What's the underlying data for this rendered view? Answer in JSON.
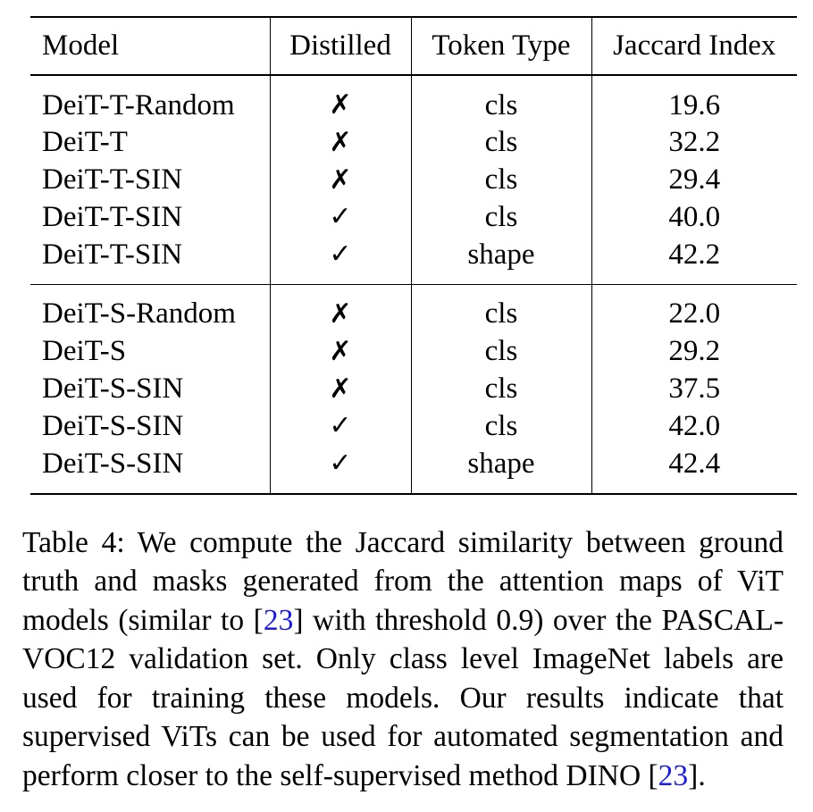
{
  "table": {
    "headers": [
      "Model",
      "Distilled",
      "Token Type",
      "Jaccard Index"
    ],
    "groups": [
      {
        "rows": [
          {
            "model": "DeiT-T-Random",
            "distilled": "✗",
            "token_type": "cls",
            "jaccard": "19.6"
          },
          {
            "model": "DeiT-T",
            "distilled": "✗",
            "token_type": "cls",
            "jaccard": "32.2"
          },
          {
            "model": "DeiT-T-SIN",
            "distilled": "✗",
            "token_type": "cls",
            "jaccard": "29.4"
          },
          {
            "model": "DeiT-T-SIN",
            "distilled": "✓",
            "token_type": "cls",
            "jaccard": "40.0"
          },
          {
            "model": "DeiT-T-SIN",
            "distilled": "✓",
            "token_type": "shape",
            "jaccard": "42.2"
          }
        ]
      },
      {
        "rows": [
          {
            "model": "DeiT-S-Random",
            "distilled": "✗",
            "token_type": "cls",
            "jaccard": "22.0"
          },
          {
            "model": "DeiT-S",
            "distilled": "✗",
            "token_type": "cls",
            "jaccard": "29.2"
          },
          {
            "model": "DeiT-S-SIN",
            "distilled": "✗",
            "token_type": "cls",
            "jaccard": "37.5"
          },
          {
            "model": "DeiT-S-SIN",
            "distilled": "✓",
            "token_type": "cls",
            "jaccard": "42.0"
          },
          {
            "model": "DeiT-S-SIN",
            "distilled": "✓",
            "token_type": "shape",
            "jaccard": "42.4"
          }
        ]
      }
    ]
  },
  "caption": {
    "part1": "Table 4: We compute the Jaccard similarity between ground truth and masks generated from the attention maps of ViT models (similar to [",
    "cite1": "23",
    "part2": "] with threshold 0.9) over the PASCAL-VOC12 validation set. Only class level ImageNet labels are used for training these models. Our results indicate that supervised ViTs can be used for automated segmentation and perform closer to the self-supervised method DINO [",
    "cite2": "23",
    "part3": "]."
  },
  "colors": {
    "citation_link": "#1a1aee"
  }
}
